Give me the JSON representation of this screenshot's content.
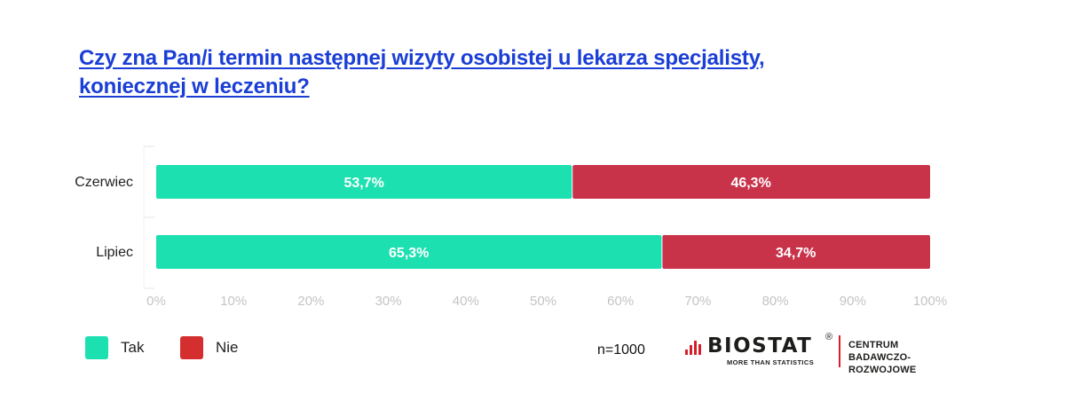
{
  "title": {
    "line1": "Czy zna Pan/i termin następnej wizyty osobistej u lekarza specjalisty,",
    "line2": "koniecznej w leczeniu?"
  },
  "chart_data": {
    "type": "bar",
    "orientation": "horizontal",
    "stacked": true,
    "categories": [
      "Czerwiec",
      "Lipiec"
    ],
    "series": [
      {
        "name": "Tak",
        "values": [
          53.7,
          65.3
        ],
        "labels": [
          "53,7%",
          "65,3%"
        ],
        "color": "#1de0b0"
      },
      {
        "name": "Nie",
        "values": [
          46.3,
          34.7
        ],
        "labels": [
          "46,3%",
          "34,7%"
        ],
        "color": "#c8334a"
      }
    ],
    "xlim": [
      0,
      100
    ],
    "xticks": [
      0,
      10,
      20,
      30,
      40,
      50,
      60,
      70,
      80,
      90,
      100
    ],
    "xtick_labels": [
      "0%",
      "10%",
      "20%",
      "30%",
      "40%",
      "50%",
      "60%",
      "70%",
      "80%",
      "90%",
      "100%"
    ],
    "grid": false,
    "legend_placement": "bottom-left"
  },
  "legend": [
    {
      "label": "Tak",
      "color": "#1de0b0"
    },
    {
      "label": "Nie",
      "color": "#d42e2e"
    }
  ],
  "sample": "n=1000",
  "logo": {
    "name": "BIOSTAT",
    "registered": "®",
    "tagline": "MORE THAN STATISTICS",
    "dept_line1": "CENTRUM",
    "dept_line2": "BADAWCZO-ROZWOJOWE",
    "accent": "#d4202c"
  }
}
